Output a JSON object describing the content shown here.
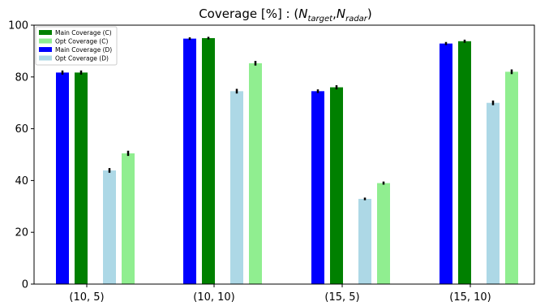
{
  "chart_data": {
    "type": "bar",
    "title": "Coverage [%] : (",
    "title_math": {
      "n1": "N",
      "sub1": "target",
      "sep": ",",
      "n2": "N",
      "sub2": "radar",
      "close": ")"
    },
    "xlabel": "",
    "ylabel": "",
    "categories": [
      "(10, 5)",
      "(10, 10)",
      "(15, 5)",
      "(15, 10)"
    ],
    "ylim": [
      0,
      100
    ],
    "yticks": [
      0,
      20,
      40,
      60,
      80,
      100
    ],
    "grid": false,
    "legend_position": "top-left",
    "legend": [
      "Main Coverage (C)",
      "Opt Coverage (C)",
      "Main Coverage (D)",
      "Opt Coverage (D)"
    ],
    "series": [
      {
        "name": "Main Coverage (D)",
        "color": "#0000ff",
        "values": [
          81.7,
          94.8,
          74.5,
          92.9
        ],
        "errors": [
          0.8,
          0.5,
          0.7,
          0.6
        ]
      },
      {
        "name": "Main Coverage (C)",
        "color": "#008000",
        "values": [
          81.7,
          95.0,
          76.0,
          93.8
        ],
        "errors": [
          0.8,
          0.5,
          0.8,
          0.6
        ]
      },
      {
        "name": "Opt Coverage (D)",
        "color": "#add8e6",
        "values": [
          43.9,
          74.5,
          32.9,
          70.0
        ],
        "errors": [
          0.9,
          0.9,
          0.5,
          0.9
        ]
      },
      {
        "name": "Opt Coverage (C)",
        "color": "#90ee90",
        "values": [
          50.5,
          85.3,
          39.0,
          82.0
        ],
        "errors": [
          1.0,
          0.9,
          0.6,
          0.9
        ]
      }
    ],
    "legend_colors": [
      "#008000",
      "#90ee90",
      "#0000ff",
      "#add8e6"
    ]
  }
}
